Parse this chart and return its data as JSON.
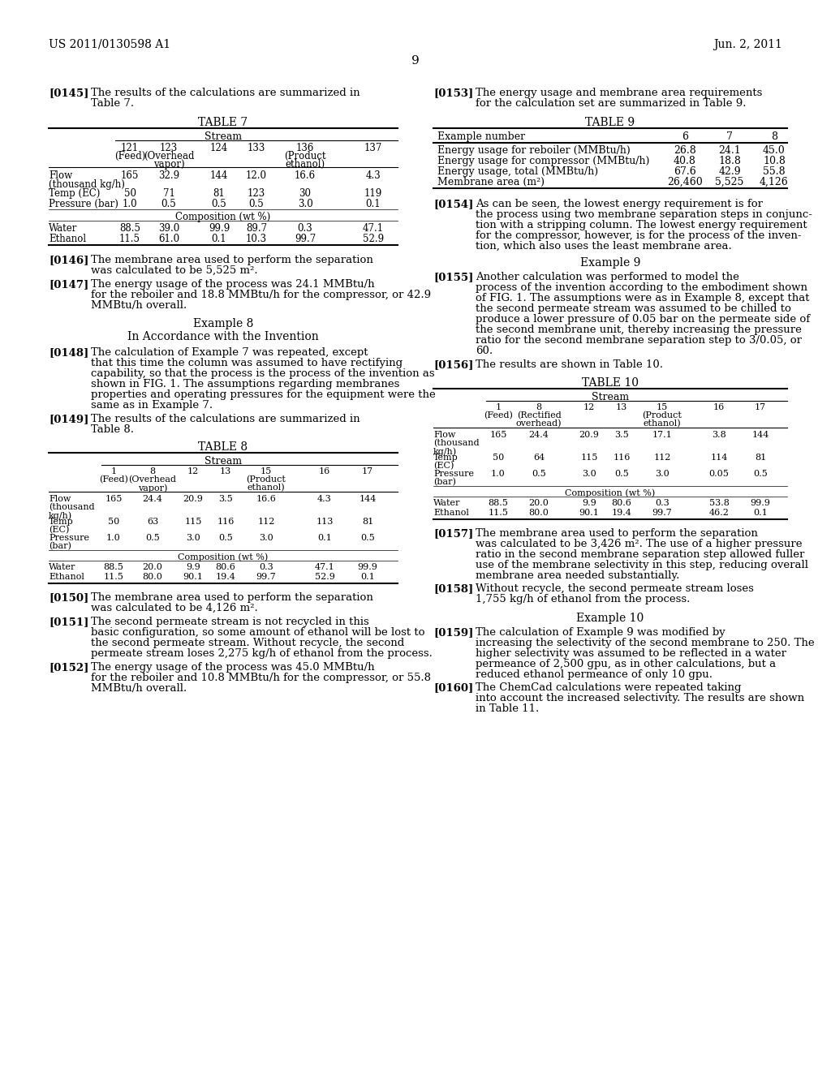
{
  "header_left": "US 2011/0130598 A1",
  "header_right": "Jun. 2, 2011",
  "page_number": "9",
  "bg": "#ffffff"
}
